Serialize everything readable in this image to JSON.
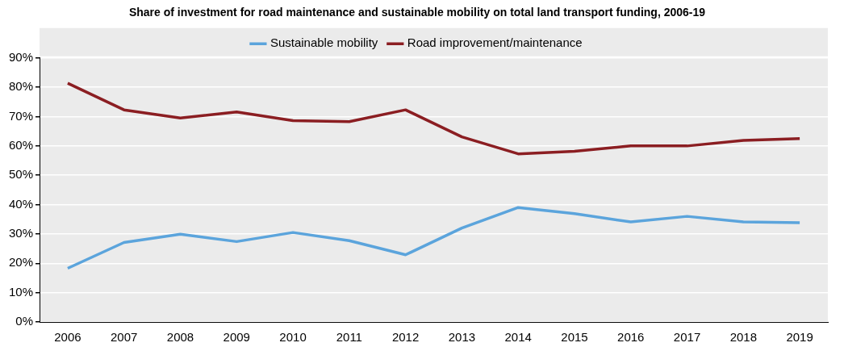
{
  "chart_data": {
    "type": "line",
    "title": "Share of investment for road maintenance and sustainable mobility on total land transport funding, 2006-19",
    "categories": [
      "2006",
      "2007",
      "2008",
      "2009",
      "2010",
      "2011",
      "2012",
      "2013",
      "2014",
      "2015",
      "2016",
      "2017",
      "2018",
      "2019"
    ],
    "series": [
      {
        "name": "Sustainable mobility",
        "color": "#5ba4dc",
        "values": [
          18.3,
          27.1,
          29.9,
          27.4,
          30.5,
          27.7,
          22.9,
          32,
          39,
          36.9,
          34.1,
          36,
          34.1,
          33.8
        ]
      },
      {
        "name": "Road improvement/maintenance",
        "color": "#8b1e22",
        "values": [
          81.4,
          72.3,
          69.5,
          71.6,
          68.6,
          68.3,
          72.3,
          63.1,
          57.3,
          58.2,
          60,
          60,
          61.9,
          62.5
        ]
      }
    ],
    "ylim": [
      0,
      90
    ],
    "yticks": [
      {
        "value": 0,
        "label": "0%"
      },
      {
        "value": 10,
        "label": "10%"
      },
      {
        "value": 20,
        "label": "20%"
      },
      {
        "value": 30,
        "label": "30%"
      },
      {
        "value": 40,
        "label": "40%"
      },
      {
        "value": 50,
        "label": "50%"
      },
      {
        "value": 60,
        "label": "60%"
      },
      {
        "value": 70,
        "label": "70%"
      },
      {
        "value": 80,
        "label": "80%"
      },
      {
        "value": 90,
        "label": "90%"
      }
    ],
    "grid": "y",
    "legend": "top",
    "marker": "none",
    "line_style": "solid"
  }
}
